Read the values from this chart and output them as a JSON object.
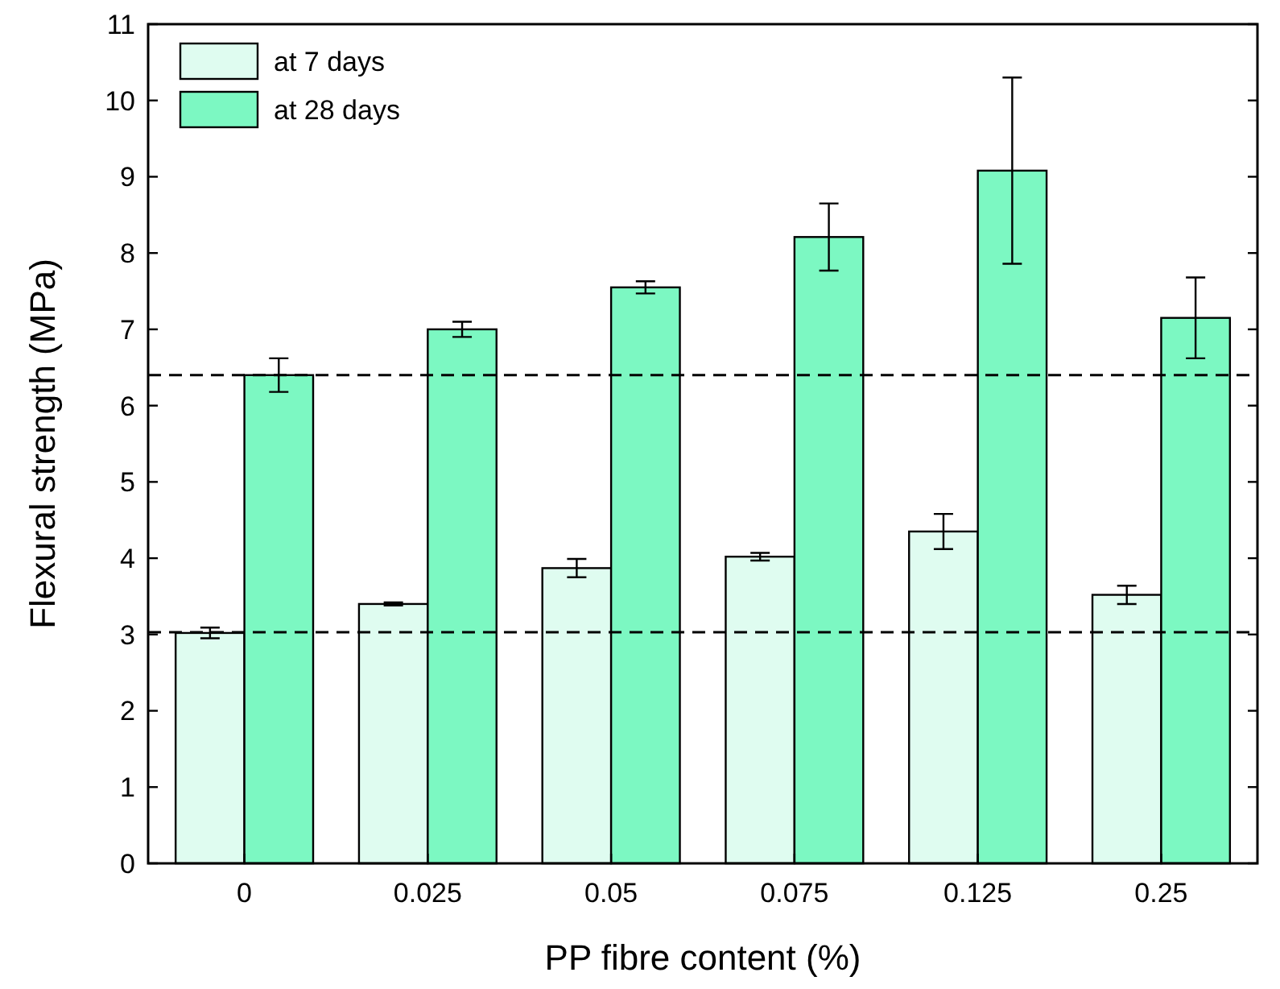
{
  "chart_data": {
    "type": "bar",
    "xlabel": "PP fibre content (%)",
    "ylabel": "Flexural strength (MPa)",
    "categories": [
      "0",
      "0.025",
      "0.05",
      "0.075",
      "0.125",
      "0.25"
    ],
    "series": [
      {
        "name": "at 7 days",
        "color": "#dffcf0",
        "values": [
          3.02,
          3.4,
          3.87,
          4.02,
          4.35,
          3.52
        ],
        "errors": [
          0.07,
          0.02,
          0.12,
          0.05,
          0.23,
          0.12
        ]
      },
      {
        "name": "at 28 days",
        "color": "#7cf8c2",
        "values": [
          6.4,
          7.0,
          7.55,
          8.21,
          9.08,
          7.15
        ],
        "errors": [
          0.22,
          0.1,
          0.08,
          0.44,
          1.22,
          0.53
        ]
      }
    ],
    "ylim": [
      0,
      11
    ],
    "yticks": [
      0,
      1,
      2,
      3,
      4,
      5,
      6,
      7,
      8,
      9,
      10,
      11
    ],
    "ref_lines": [
      {
        "axis": "y",
        "value": 6.4,
        "line_style": "dashed"
      },
      {
        "axis": "y",
        "value": 3.03,
        "line_style": "dashed"
      }
    ],
    "legend": "top left",
    "grid": false
  }
}
